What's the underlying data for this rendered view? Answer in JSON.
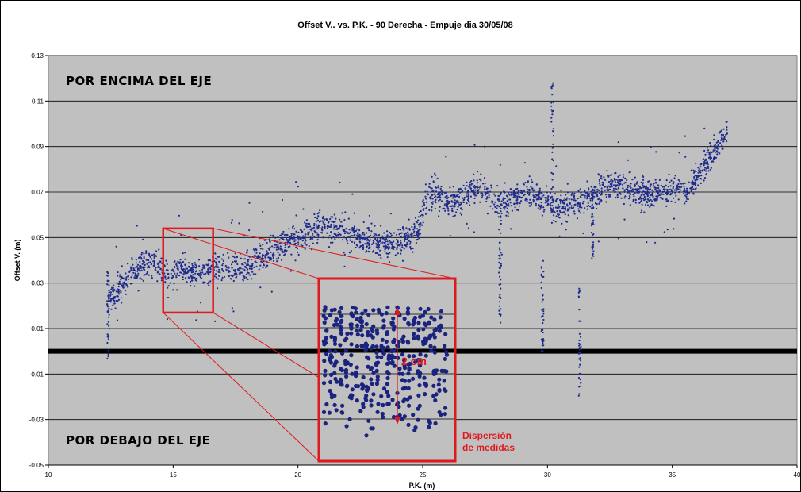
{
  "chart_data": {
    "type": "scatter",
    "title": "Offset V.. vs. P.K. - 90 Derecha - Empuje dia 30/05/08",
    "xlabel": "P.K. (m)",
    "ylabel": "Offset V. (m)",
    "xlim": [
      10,
      40
    ],
    "ylim": [
      -0.05,
      0.13
    ],
    "x_ticks": [
      "10",
      "15",
      "20",
      "25",
      "30",
      "35",
      "40"
    ],
    "y_ticks": [
      "0.13",
      "0.11",
      "0.09",
      "0.07",
      "0.05",
      "0.03",
      "0.01",
      "-0.01",
      "-0.03",
      "-0.05"
    ],
    "grid": "horizontal",
    "background": "#c0c0c0",
    "point_color": "#1f2b8c",
    "reference_line": {
      "y": 0.0,
      "color": "#000000"
    },
    "series": [
      {
        "x": [
          12.4,
          12.8,
          13.2,
          13.6,
          14.0,
          14.4,
          14.8,
          15.2,
          15.6,
          16.0,
          16.4,
          16.8,
          17.2,
          17.6,
          18.0,
          18.4,
          18.8,
          19.2,
          19.6,
          20.0,
          20.4,
          20.8,
          21.2,
          21.6,
          22.0,
          22.4,
          22.8,
          23.2,
          23.6,
          24.0,
          24.4,
          24.8,
          25.2,
          25.6,
          26.0,
          26.4,
          26.8,
          27.2,
          27.6,
          28.0,
          28.4,
          28.8,
          29.2,
          29.6,
          30.0,
          30.4,
          30.8,
          31.2,
          31.6,
          32.0,
          32.4,
          32.8,
          33.2,
          33.6,
          34.0,
          34.4,
          34.8,
          35.2,
          35.6,
          36.0,
          36.4,
          36.8,
          37.2
        ],
        "y": [
          0.022,
          0.027,
          0.033,
          0.036,
          0.04,
          0.037,
          0.034,
          0.036,
          0.035,
          0.034,
          0.036,
          0.037,
          0.037,
          0.036,
          0.038,
          0.041,
          0.043,
          0.046,
          0.048,
          0.05,
          0.052,
          0.054,
          0.055,
          0.054,
          0.052,
          0.05,
          0.049,
          0.048,
          0.047,
          0.048,
          0.05,
          0.052,
          0.069,
          0.069,
          0.065,
          0.066,
          0.07,
          0.072,
          0.07,
          0.064,
          0.066,
          0.068,
          0.07,
          0.067,
          0.066,
          0.063,
          0.064,
          0.065,
          0.068,
          0.071,
          0.072,
          0.073,
          0.071,
          0.07,
          0.069,
          0.07,
          0.071,
          0.072,
          0.07,
          0.077,
          0.083,
          0.09,
          0.096
        ]
      }
    ],
    "annotations": {
      "above": "POR ENCIMA DEL EJE",
      "below": "POR DEBAJO DEL EJE",
      "scale_mark": "2 cm",
      "dispersion_line1": "Dispersión",
      "dispersion_line2": "de medidas"
    },
    "zoom_region": {
      "x": [
        14.6,
        16.6
      ],
      "y": [
        0.017,
        0.054
      ]
    }
  }
}
